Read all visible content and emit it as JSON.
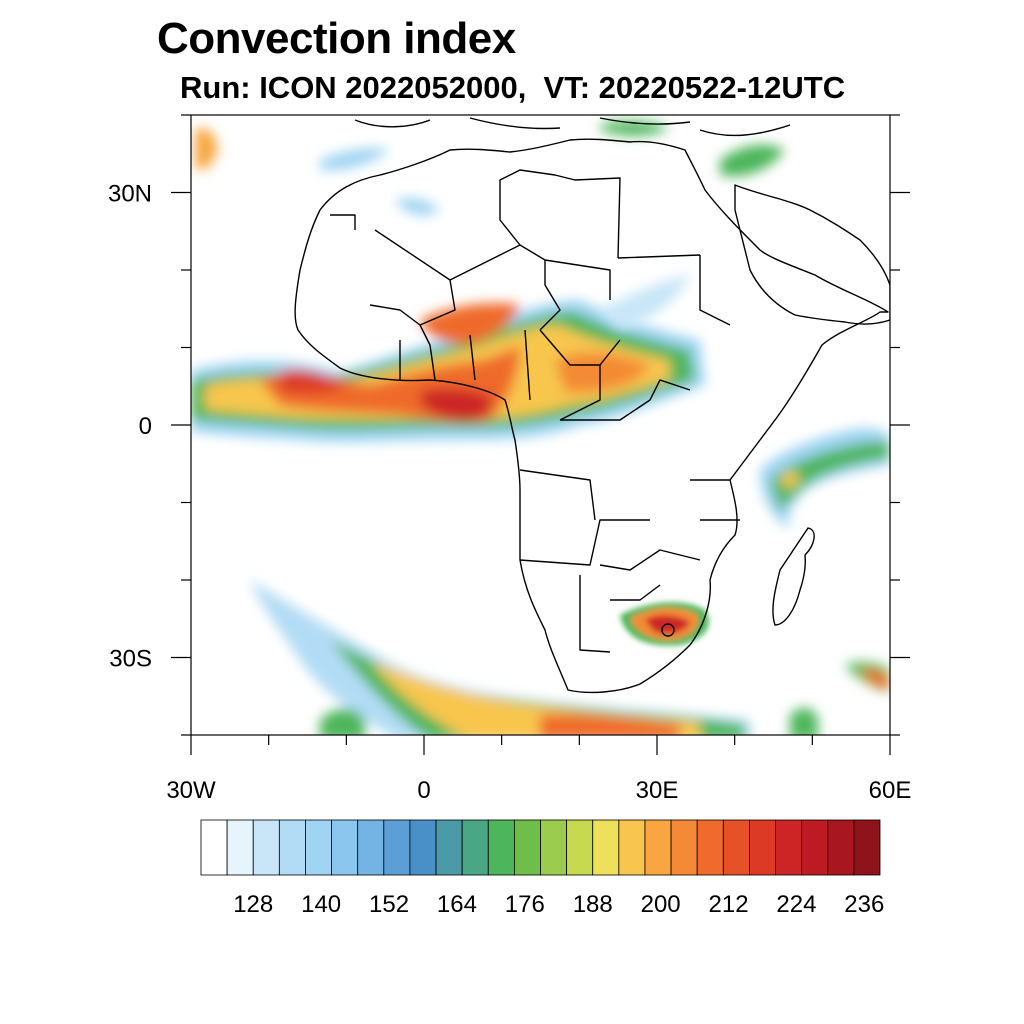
{
  "title": "Convection index",
  "subtitle": "Run: ICON 2022052000,  VT: 20220522-12UTC",
  "map": {
    "region": "Africa",
    "lon_range": [
      -30,
      60
    ],
    "lat_range": [
      -40,
      40
    ],
    "x_ticks": [
      {
        "lon": -30,
        "label": "30W"
      },
      {
        "lon": 0,
        "label": "0"
      },
      {
        "lon": 30,
        "label": "30E"
      },
      {
        "lon": 60,
        "label": "60E"
      }
    ],
    "y_ticks": [
      {
        "lat": 30,
        "label": "30N"
      },
      {
        "lat": 0,
        "label": "0"
      },
      {
        "lat": -30,
        "label": "30S"
      }
    ]
  },
  "colorbar": {
    "colors": [
      "#ffffff",
      "#e6f4fc",
      "#c8e6f8",
      "#b2dcf5",
      "#9fd4f3",
      "#8ac6ee",
      "#74b4e4",
      "#5b9fd6",
      "#4a90c8",
      "#4b9aa8",
      "#4aa684",
      "#4db65c",
      "#6fbe4a",
      "#9ccc4e",
      "#c6d94f",
      "#ede05a",
      "#f8c64e",
      "#f7a640",
      "#f48a35",
      "#ef6a2c",
      "#e65128",
      "#dd3a25",
      "#cd2525",
      "#bc1b24",
      "#a8161f",
      "#8f131a"
    ],
    "labels": [
      "128",
      "140",
      "152",
      "164",
      "176",
      "188",
      "200",
      "212",
      "224",
      "236"
    ]
  },
  "features": {
    "coastline_color": "#000000",
    "field_label": "Convection index"
  }
}
